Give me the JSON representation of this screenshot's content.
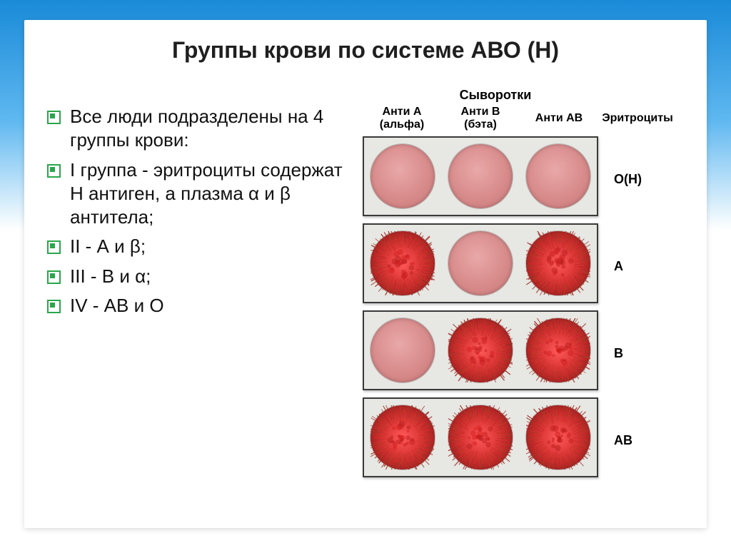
{
  "title": "Группы крови по системе АВО (Н)",
  "bullets": [
    "Все люди подразделены на 4 группы крови:",
    "I группа - эритроциты содержат Н антиген,  а плазма α и β антитела;",
    "II - А и β;",
    "III - В и α;",
    "IV - АВ и О"
  ],
  "figure": {
    "serums_heading": "Сыворотки",
    "columns": [
      "Анти А\n(альфа)",
      "Анти В\n(бэта)",
      "Анти АВ",
      "Эритроциты"
    ],
    "rows": [
      {
        "label": "О(Н)",
        "cells": [
          "smooth",
          "smooth",
          "smooth"
        ]
      },
      {
        "label": "A",
        "cells": [
          "aggl",
          "smooth",
          "aggl"
        ]
      },
      {
        "label": "B",
        "cells": [
          "smooth",
          "aggl",
          "aggl"
        ]
      },
      {
        "label": "AB",
        "cells": [
          "aggl",
          "aggl",
          "aggl"
        ]
      }
    ],
    "colors": {
      "smooth_fill": "#d88b8b",
      "aggl_center": "#ff5a5a",
      "aggl_edge": "#8f1c1c",
      "panel_bg": "#e7e7e3",
      "panel_border": "#3a3a3a"
    }
  },
  "slide_bg": {
    "top": "#1a8ad8",
    "mid": "#5fb8f0",
    "bottom": "#ffffff"
  }
}
